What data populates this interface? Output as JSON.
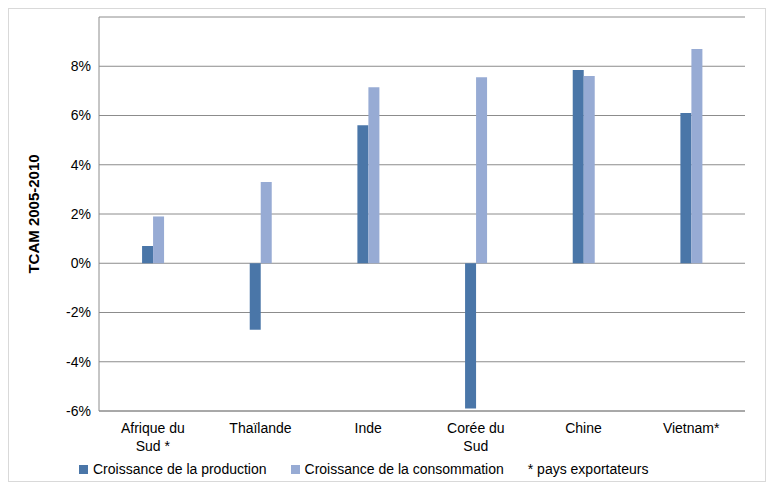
{
  "chart_data": {
    "type": "bar",
    "y_label": "TCAM 2005-2010",
    "note": "* pays exportateurs",
    "categories": [
      "Afrique du Sud *",
      "Thaïlande",
      "Inde",
      "Corée du Sud",
      "Chine",
      "Vietnam*"
    ],
    "series": [
      {
        "name": "Croissance de la production",
        "color": "#4a76a8",
        "values": [
          0.7,
          -2.7,
          5.6,
          -5.9,
          7.85,
          6.1
        ]
      },
      {
        "name": "Croissance de la consommation",
        "color": "#97abd4",
        "values": [
          1.9,
          3.3,
          7.15,
          7.55,
          7.6,
          8.7
        ]
      }
    ],
    "ylim": [
      -6,
      10
    ],
    "yticks": [
      {
        "value": -6,
        "label": "-6%"
      },
      {
        "value": -4,
        "label": "-4%"
      },
      {
        "value": -2,
        "label": "-2%"
      },
      {
        "value": 0,
        "label": "0%"
      },
      {
        "value": 2,
        "label": "2%"
      },
      {
        "value": 4,
        "label": "4%"
      },
      {
        "value": 6,
        "label": "6%"
      },
      {
        "value": 8,
        "label": "8%"
      }
    ],
    "grid": true,
    "legend": "bottom"
  }
}
